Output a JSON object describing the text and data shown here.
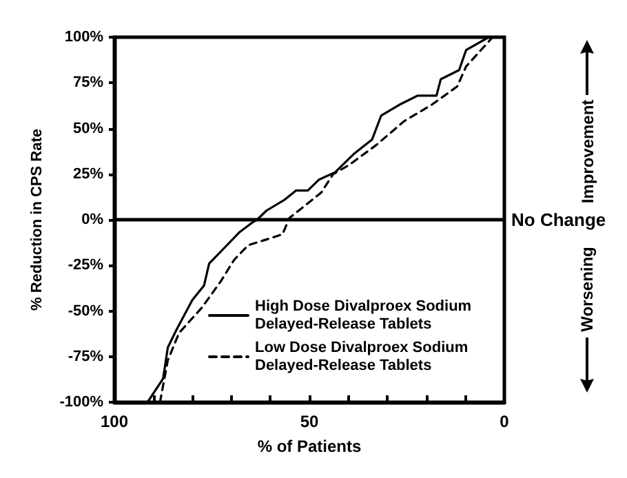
{
  "chart_data": {
    "type": "line",
    "xlabel": "% of Patients",
    "ylabel": "% Reduction in CPS Rate",
    "xlim": [
      100,
      0
    ],
    "xticks": [
      100,
      {
        "value": 90,
        "label": null
      },
      {
        "value": 80,
        "label": null
      },
      {
        "value": 70,
        "label": null
      },
      {
        "value": 60,
        "label": null
      },
      50,
      {
        "value": 40,
        "label": null
      },
      {
        "value": 30,
        "label": null
      },
      {
        "value": 20,
        "label": null
      },
      {
        "value": 10,
        "label": null
      },
      0
    ],
    "ylim": [
      -100,
      100
    ],
    "yticks": [
      {
        "value": -100,
        "label": "-100%"
      },
      {
        "value": -75,
        "label": "-75%"
      },
      {
        "value": -50,
        "label": "-50%"
      },
      {
        "value": -25,
        "label": "-25%"
      },
      {
        "value": 0,
        "label": "0%"
      },
      {
        "value": 25,
        "label": "25%"
      },
      {
        "value": 50,
        "label": "50%"
      },
      {
        "value": 75,
        "label": "75%"
      },
      {
        "value": 100,
        "label": "100%"
      }
    ],
    "series": [
      {
        "name": "High Dose Divalproex Sodium Delayed-Release Tablets",
        "color": "#000000",
        "line_style": "solid",
        "x": [
          91.5,
          87.5,
          86.3,
          84,
          80,
          77,
          75.7,
          71.6,
          68,
          64.6,
          63.4,
          61,
          56.3,
          53.4,
          50.4,
          47.5,
          43.4,
          38.6,
          33.9,
          31.6,
          26.9,
          22.2,
          17.4,
          16.3,
          11.6,
          9.8,
          4
        ],
        "values": [
          -100,
          -87,
          -70,
          -60,
          -44,
          -36,
          -24,
          -15,
          -7,
          -1.5,
          0,
          5,
          11,
          16,
          16,
          22,
          26,
          36,
          44,
          57,
          63,
          68,
          68,
          77,
          82,
          93,
          100
        ]
      },
      {
        "name": "Low Dose Divalproex Sodium Delayed-Release Tablets",
        "color": "#000000",
        "line_style": "dashed",
        "x": [
          88.3,
          86.3,
          83.4,
          77.5,
          72.8,
          69.3,
          65.7,
          59.8,
          56.9,
          55.1,
          50.4,
          46.9,
          43.9,
          39.8,
          32.8,
          25.7,
          18.6,
          12.1,
          9.8,
          3
        ],
        "values": [
          -100,
          -77,
          -62,
          -48,
          -34,
          -22,
          -14,
          -10,
          -8,
          1,
          9,
          15,
          25,
          30,
          41,
          54,
          63,
          73,
          84,
          100
        ]
      }
    ],
    "ref_lines": [
      {
        "axis": "y",
        "value": 0,
        "label": "No Change",
        "color": "#000000"
      }
    ],
    "annotations": [
      "Improvement",
      "Worsening"
    ],
    "grid": false,
    "legend": "bottom right",
    "marker": "none"
  }
}
